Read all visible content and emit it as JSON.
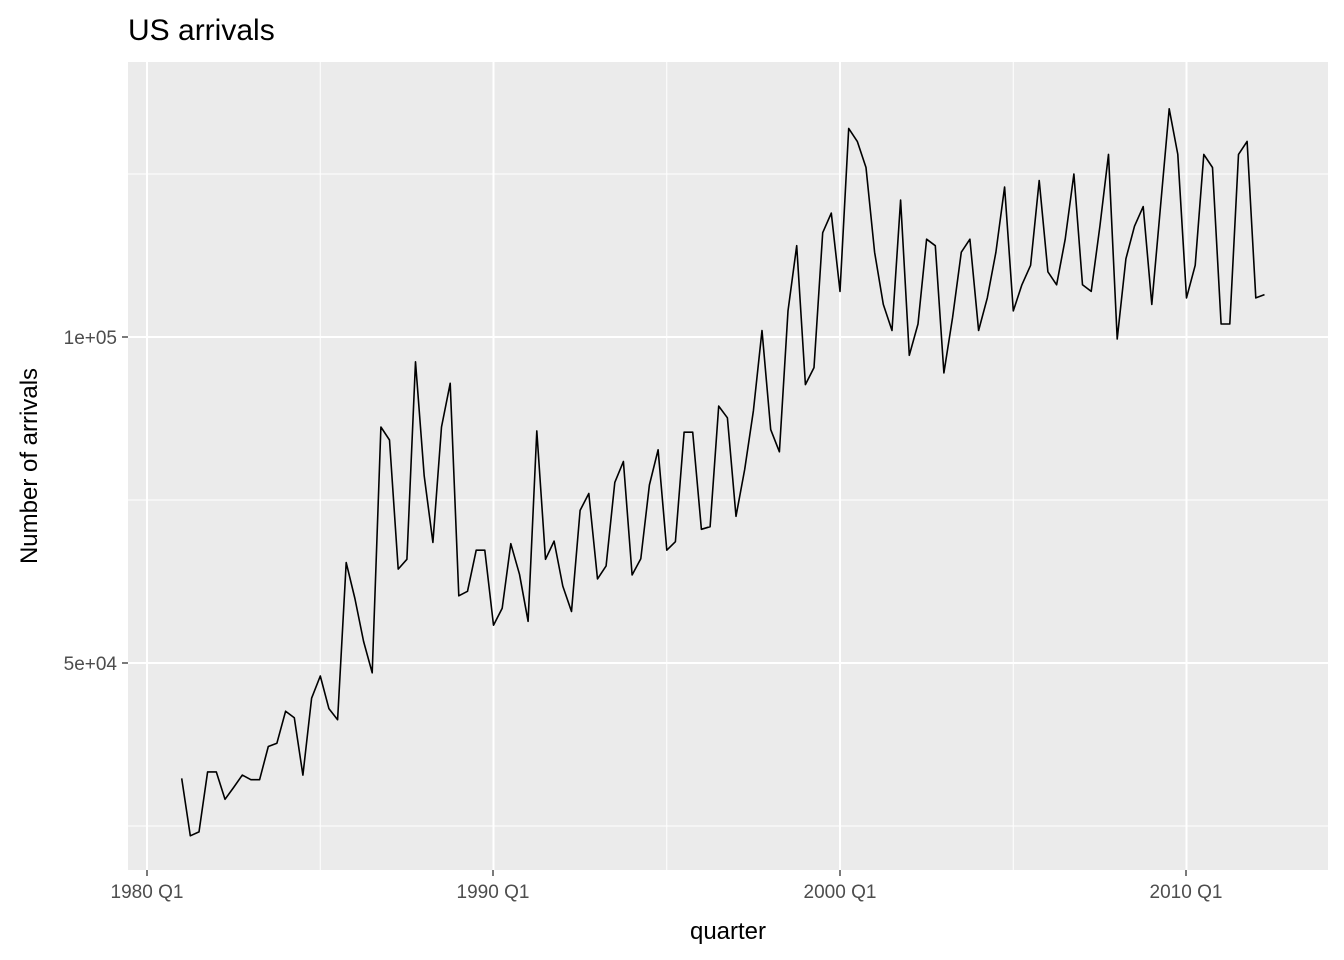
{
  "chart_data": {
    "type": "line",
    "title": "US arrivals",
    "xlabel": "quarter",
    "ylabel": "Number of arrivals",
    "x_ticks": [
      "1980 Q1",
      "1990 Q1",
      "2000 Q1",
      "2010 Q1"
    ],
    "y_ticks": [
      "5e+04",
      "1e+05"
    ],
    "grid": true,
    "background": "#EBEBEB",
    "line_color": "#000000",
    "x_start": "1981 Q1",
    "series": [
      {
        "values": [
          32300,
          23500,
          24100,
          33300,
          33300,
          29100,
          30900,
          32800,
          32100,
          32100,
          37200,
          37700,
          42600,
          41600,
          32800,
          44600,
          48000,
          43000,
          41300,
          65400,
          59900,
          53300,
          48500,
          86200,
          84200,
          64400,
          65900,
          96200,
          78700,
          68500,
          86200,
          92900,
          60300,
          61000,
          67300,
          67300,
          55800,
          58400,
          68300,
          63600,
          56400,
          85600,
          65900,
          68700,
          61800,
          57900,
          73400,
          76000,
          62900,
          64900,
          77700,
          80900,
          63500,
          66000,
          77300,
          82700,
          67300,
          68600,
          85400,
          85400,
          70500,
          70900,
          89400,
          87600,
          72500,
          79700,
          88700,
          101000,
          85800,
          82400,
          104000,
          114000,
          92700,
          95300,
          116000,
          119000,
          107000,
          132000,
          130000,
          126000,
          113000,
          105000,
          101000,
          121000,
          97200,
          102000,
          115000,
          114000,
          94500,
          103000,
          113000,
          115000,
          101000,
          106000,
          113000,
          123000,
          104000,
          108000,
          111000,
          124000,
          110000,
          108000,
          115000,
          125000,
          108000,
          107000,
          117000,
          128000,
          99700,
          112000,
          117000,
          120000,
          105000,
          120000,
          135000,
          128000,
          106000,
          111000,
          128000,
          126000,
          102000,
          102000,
          128000,
          130000,
          106000,
          106500
        ]
      }
    ]
  }
}
